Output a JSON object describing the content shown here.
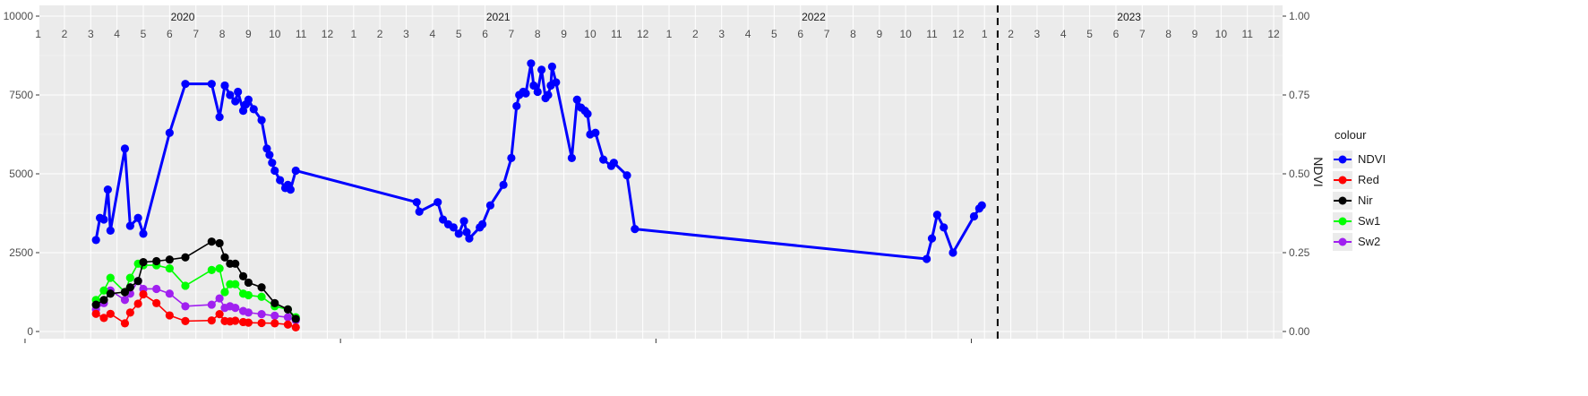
{
  "chart_data": {
    "type": "line",
    "title": "",
    "xlabel": "",
    "ylabel": "",
    "y2label": "NDVI",
    "ylim": [
      0,
      10000
    ],
    "y2lim": [
      0,
      1
    ],
    "y_ticks": [
      "0",
      "2500",
      "5000",
      "7500",
      "10000"
    ],
    "y2_ticks": [
      "0.00",
      "0.25",
      "0.50",
      "0.75",
      "1.00"
    ],
    "x_unit": "month index since Jan 2020 (1 = Jan 2020)",
    "years": [
      "2020",
      "2021",
      "2022",
      "2023"
    ],
    "month_labels": [
      "1",
      "2",
      "3",
      "4",
      "5",
      "6",
      "7",
      "8",
      "9",
      "10",
      "11",
      "12"
    ],
    "reference_line": {
      "style": "dashed",
      "color": "#000000",
      "x": 37
    },
    "grid": true,
    "legend": {
      "title": "colour",
      "position": "right",
      "entries": [
        "NDVI",
        "Red",
        "Nir",
        "Sw1",
        "Sw2"
      ]
    },
    "series": [
      {
        "name": "NDVI",
        "color": "#0000ff",
        "axis": "right",
        "x": [
          3.2,
          3.35,
          3.5,
          3.65,
          3.75,
          4.3,
          4.5,
          4.8,
          5.0,
          6.0,
          6.6,
          7.6,
          7.9,
          8.1,
          8.3,
          8.5,
          8.6,
          8.8,
          8.9,
          9.0,
          9.2,
          9.5,
          9.7,
          9.8,
          9.9,
          10.0,
          10.2,
          10.4,
          10.5,
          10.6,
          10.8,
          15.4,
          15.5,
          16.2,
          16.4,
          16.6,
          16.8,
          17.0,
          17.2,
          17.3,
          17.4,
          17.8,
          17.9,
          18.2,
          18.7,
          19.0,
          19.2,
          19.3,
          19.45,
          19.55,
          19.75,
          19.85,
          20.0,
          20.15,
          20.3,
          20.4,
          20.5,
          20.55,
          20.7,
          21.3,
          21.5,
          21.65,
          21.8,
          21.9,
          22.0,
          22.2,
          22.5,
          22.8,
          22.9,
          23.4,
          23.7,
          34.8,
          35.0,
          35.2,
          35.45,
          35.8,
          36.6,
          36.8,
          36.9
        ],
        "values": [
          0.29,
          0.36,
          0.355,
          0.45,
          0.32,
          0.58,
          0.335,
          0.36,
          0.31,
          0.63,
          0.785,
          0.785,
          0.68,
          0.78,
          0.75,
          0.73,
          0.76,
          0.7,
          0.72,
          0.735,
          0.705,
          0.67,
          0.58,
          0.56,
          0.535,
          0.51,
          0.48,
          0.455,
          0.465,
          0.45,
          0.51,
          0.41,
          0.38,
          0.41,
          0.355,
          0.34,
          0.33,
          0.31,
          0.35,
          0.315,
          0.295,
          0.33,
          0.34,
          0.4,
          0.465,
          0.55,
          0.715,
          0.75,
          0.76,
          0.755,
          0.85,
          0.78,
          0.76,
          0.83,
          0.74,
          0.75,
          0.78,
          0.84,
          0.79,
          0.55,
          0.735,
          0.71,
          0.7,
          0.69,
          0.625,
          0.63,
          0.545,
          0.525,
          0.535,
          0.495,
          0.325,
          0.23,
          0.295,
          0.37,
          0.33,
          0.25,
          0.365,
          0.39,
          0.4
        ],
        "note": "x positions are approximate month indices"
      },
      {
        "name": "Red",
        "color": "#ff0000",
        "axis": "left",
        "x": [
          3.2,
          3.5,
          3.75,
          4.3,
          4.5,
          4.8,
          5.0,
          5.5,
          6.0,
          6.6,
          7.6,
          7.9,
          8.1,
          8.3,
          8.5,
          8.8,
          9.0,
          9.5,
          10.0,
          10.5,
          10.8
        ],
        "values": [
          560,
          430,
          560,
          260,
          600,
          880,
          1180,
          900,
          510,
          330,
          350,
          550,
          330,
          320,
          340,
          300,
          280,
          270,
          260,
          220,
          130
        ]
      },
      {
        "name": "Nir",
        "color": "#000000",
        "axis": "left",
        "x": [
          3.2,
          3.5,
          3.75,
          4.3,
          4.5,
          4.8,
          5.0,
          5.5,
          6.0,
          6.6,
          7.6,
          7.9,
          8.1,
          8.3,
          8.5,
          8.8,
          9.0,
          9.5,
          10.0,
          10.5,
          10.8
        ],
        "values": [
          850,
          1000,
          1200,
          1250,
          1400,
          1600,
          2200,
          2230,
          2280,
          2350,
          2850,
          2800,
          2350,
          2150,
          2150,
          1750,
          1550,
          1400,
          900,
          700,
          400
        ]
      },
      {
        "name": "Sw1",
        "color": "#00ff00",
        "axis": "left",
        "x": [
          3.2,
          3.5,
          3.75,
          4.3,
          4.5,
          4.8,
          5.0,
          5.5,
          6.0,
          6.6,
          7.6,
          7.9,
          8.1,
          8.3,
          8.5,
          8.8,
          9.0,
          9.5,
          10.0,
          10.5,
          10.8
        ],
        "values": [
          1000,
          1300,
          1700,
          1250,
          1700,
          2150,
          2100,
          2100,
          2000,
          1450,
          1950,
          2000,
          1250,
          1500,
          1500,
          1200,
          1150,
          1100,
          800,
          700,
          450
        ]
      },
      {
        "name": "Sw2",
        "color": "#a020f0",
        "axis": "left",
        "x": [
          3.2,
          3.5,
          3.75,
          4.3,
          4.5,
          4.8,
          5.0,
          5.5,
          6.0,
          6.6,
          7.6,
          7.9,
          8.1,
          8.3,
          8.5,
          8.8,
          9.0,
          9.5,
          10.0,
          10.5,
          10.8
        ],
        "values": [
          700,
          900,
          1300,
          1000,
          1200,
          1600,
          1350,
          1350,
          1200,
          800,
          850,
          1050,
          750,
          800,
          750,
          650,
          600,
          550,
          500,
          450,
          350
        ]
      }
    ]
  }
}
